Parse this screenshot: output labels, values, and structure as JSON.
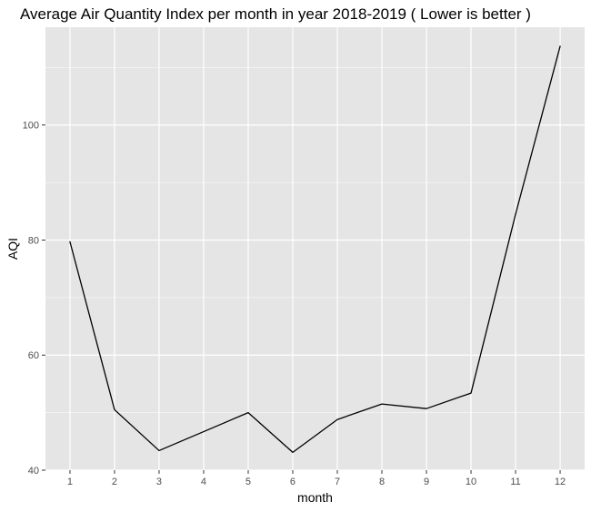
{
  "chart_data": {
    "type": "line",
    "title": "Average Air Quantity Index per month in year 2018-2019 ( Lower is better )",
    "xlabel": "month",
    "ylabel": "AQI",
    "x": [
      1,
      2,
      3,
      4,
      5,
      6,
      7,
      8,
      9,
      10,
      11,
      12
    ],
    "x_ticks": [
      "1",
      "2",
      "3",
      "4",
      "5",
      "6",
      "7",
      "8",
      "9",
      "10",
      "11",
      "12"
    ],
    "y_ticks": [
      "40",
      "60",
      "80",
      "100"
    ],
    "y_tick_values": [
      40,
      60,
      80,
      100
    ],
    "xlim": [
      0.45,
      12.55
    ],
    "ylim": [
      40,
      117
    ],
    "grid": true,
    "colors": {
      "panel_background": "#e5e5e5",
      "grid_line": "#ffffff",
      "series_line": "#000000",
      "tick_text": "#4d4d4d",
      "tick_mark": "#333333"
    },
    "series": [
      {
        "values": [
          79.7,
          50.5,
          43.4,
          46.7,
          50.0,
          43.1,
          48.8,
          51.5,
          50.7,
          53.4,
          84.5,
          113.7
        ]
      }
    ]
  }
}
